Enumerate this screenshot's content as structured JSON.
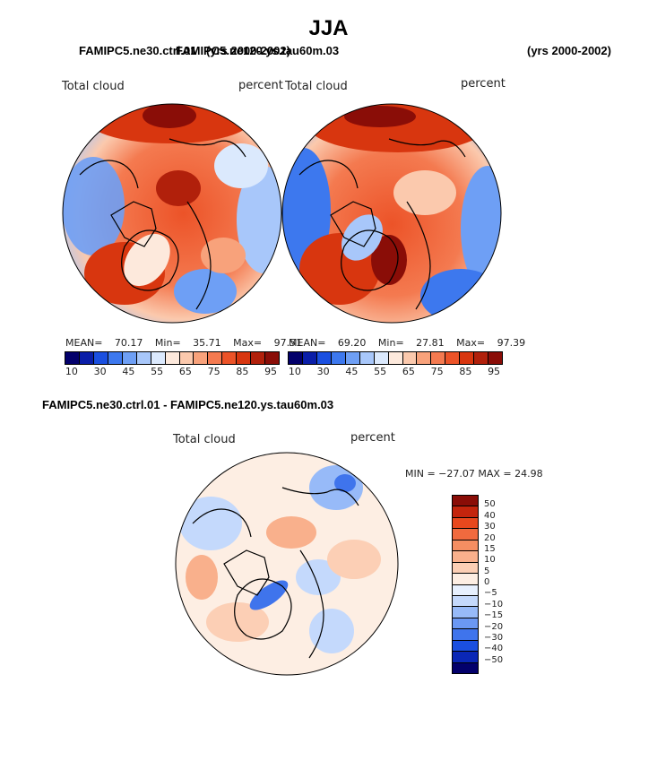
{
  "season": "JJA",
  "panels": {
    "left": {
      "case": "FAMIPC5.ne30.ctrl.01",
      "years": "(yrs 2000-2002)",
      "field": "Total cloud",
      "units": "percent",
      "mean_label": "MEAN=",
      "mean": "70.17",
      "min_label": "Min=",
      "min": "35.71",
      "max_label": "Max=",
      "max": "97.51"
    },
    "right": {
      "case": "FAMIPC5.ne120.ys.tau60m.03",
      "years": "(yrs 2000-2002)",
      "field": "Total cloud",
      "units": "percent",
      "mean_label": "MEAN=",
      "mean": "69.20",
      "min_label": "Min=",
      "min": "27.81",
      "max_label": "Max=",
      "max": "97.39"
    },
    "diff": {
      "title": "FAMIPC5.ne30.ctrl.01 - FAMIPC5.ne120.ys.tau60m.03",
      "field": "Total cloud",
      "units": "percent",
      "minmax": "MIN = −27.07 MAX =  24.98"
    }
  },
  "colors": {
    "abs": [
      "#03006b",
      "#0a1ea8",
      "#1a4fe0",
      "#3d78ee",
      "#6e9ff5",
      "#a8c7fa",
      "#dbe9fd",
      "#fde9dc",
      "#fbc9ad",
      "#f8a27b",
      "#f47a50",
      "#ec5328",
      "#d8360f",
      "#b1200b",
      "#8a0d07"
    ],
    "diff": [
      "#8a0d07",
      "#c4250d",
      "#e8481d",
      "#f16a3e",
      "#f58e62",
      "#f9b08c",
      "#fccfb5",
      "#fdeee3",
      "#e7f0fe",
      "#c4d9fc",
      "#97baf8",
      "#6b98f3",
      "#3f74ec",
      "#1a4fe0",
      "#0a27b6",
      "#03006b"
    ]
  },
  "chart_data": [
    {
      "type": "heatmap",
      "projection": "north-polar-stereographic",
      "title": "FAMIPC5.ne30.ctrl.01",
      "variable": "Total cloud",
      "units": "percent",
      "stats": {
        "mean": 70.17,
        "min": 35.71,
        "max": 97.51
      },
      "colorbar_ticks": [
        "10",
        "30",
        "45",
        "55",
        "65",
        "75",
        "85",
        "95"
      ]
    },
    {
      "type": "heatmap",
      "projection": "north-polar-stereographic",
      "title": "FAMIPC5.ne120.ys.tau60m.03",
      "variable": "Total cloud",
      "units": "percent",
      "stats": {
        "mean": 69.2,
        "min": 27.81,
        "max": 97.39
      },
      "colorbar_ticks": [
        "10",
        "30",
        "45",
        "55",
        "65",
        "75",
        "85",
        "95"
      ]
    },
    {
      "type": "heatmap",
      "projection": "north-polar-stereographic",
      "title": "FAMIPC5.ne30.ctrl.01 - FAMIPC5.ne120.ys.tau60m.03",
      "variable": "Total cloud",
      "units": "percent",
      "stats": {
        "min": -27.07,
        "max": 24.98
      },
      "colorbar_ticks": [
        "50",
        "40",
        "30",
        "20",
        "15",
        "10",
        "5",
        "0",
        "−5",
        "−10",
        "−15",
        "−20",
        "−30",
        "−40",
        "−50"
      ]
    }
  ]
}
